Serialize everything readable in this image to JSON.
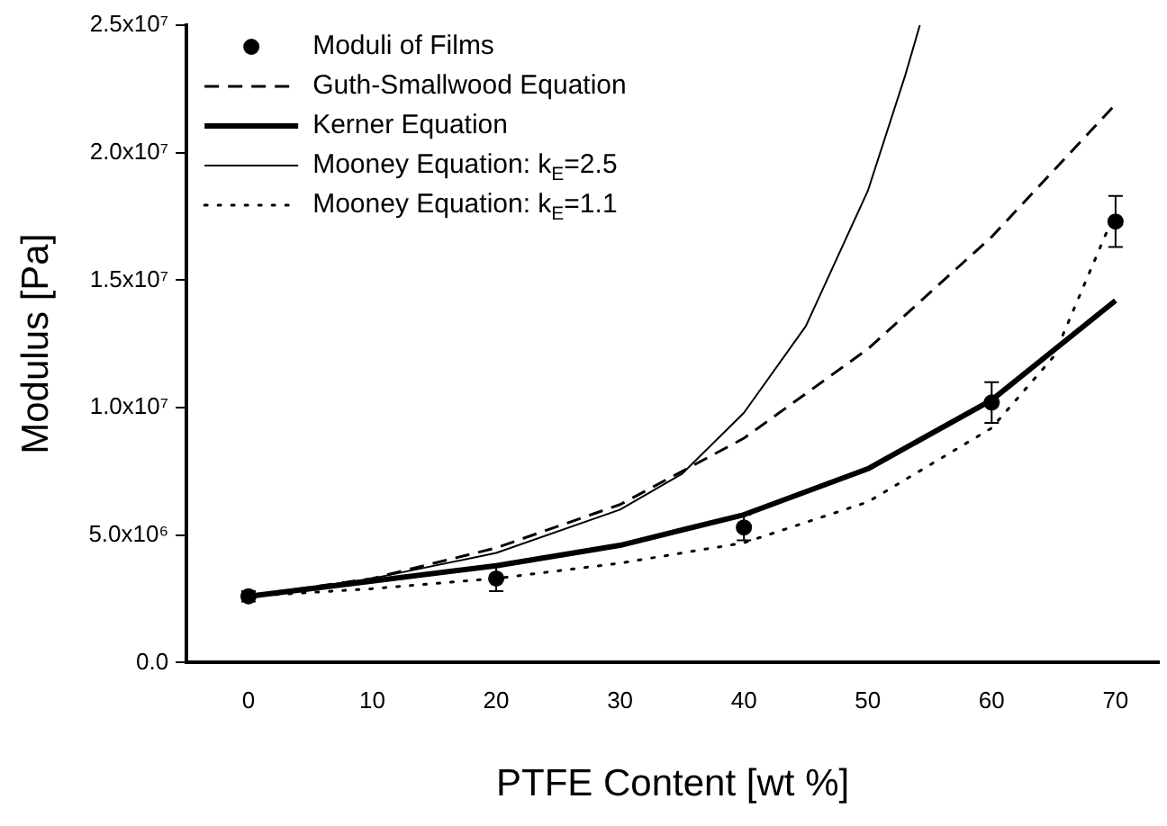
{
  "chart_data": {
    "type": "line",
    "xlabel": "PTFE Content [wt %]",
    "ylabel": "Modulus [Pa]",
    "xlim": [
      -5,
      73.5
    ],
    "xticks": [
      0,
      10,
      20,
      30,
      40,
      50,
      60,
      70
    ],
    "ylim": [
      0,
      25000000
    ],
    "yticks": [
      {
        "value": 0,
        "label": "0.0"
      },
      {
        "value": 5000000,
        "label": "5.0x10⁶"
      },
      {
        "value": 10000000,
        "label": "1.0x10⁷"
      },
      {
        "value": 15000000,
        "label": "1.5x10⁷"
      },
      {
        "value": 20000000,
        "label": "2.0x10⁷"
      },
      {
        "value": 25000000,
        "label": "2.5x10⁷"
      }
    ],
    "grid": false,
    "legend": "top left",
    "series": [
      {
        "name": "Moduli of Films",
        "type": "scatter",
        "marker": "circle",
        "color": "#000000",
        "x": [
          0,
          20,
          40,
          60,
          70
        ],
        "values": [
          2600000,
          3300000,
          5300000,
          10200000,
          17300000
        ],
        "errors": [
          200000,
          500000,
          500000,
          800000,
          1000000
        ]
      },
      {
        "name": "Guth-Smallwood Equation",
        "line_style": "dashed",
        "marker": "none",
        "color": "#000000",
        "x": [
          0,
          10,
          20,
          30,
          40,
          50,
          60,
          70
        ],
        "values": [
          2600000,
          3300000,
          4500000,
          6200000,
          8800000,
          12300000,
          16700000,
          21900000
        ]
      },
      {
        "name": "Kerner Equation",
        "line_style": "solid",
        "marker": "none",
        "color": "#000000",
        "x": [
          0,
          10,
          20,
          30,
          40,
          50,
          60,
          70
        ],
        "values": [
          2600000,
          3200000,
          3800000,
          4600000,
          5800000,
          7600000,
          10300000,
          14200000
        ]
      },
      {
        "name": "Mooney Equation: k$_{E}$=2.5",
        "line_style": "solid",
        "marker": "none",
        "color": "#000000",
        "x": [
          0,
          10,
          20,
          30,
          35,
          40,
          45,
          50,
          53,
          54.2
        ],
        "values": [
          2600000,
          3300000,
          4300000,
          6000000,
          7400000,
          9800000,
          13200000,
          18500000,
          23000000,
          25000000
        ]
      },
      {
        "name": "Mooney Equation: k$_{E}$=1.1",
        "line_style": "dotted",
        "marker": "none",
        "color": "#000000",
        "x": [
          0,
          10,
          20,
          30,
          40,
          50,
          60,
          65,
          70
        ],
        "values": [
          2600000,
          2900000,
          3300000,
          3900000,
          4700000,
          6300000,
          9200000,
          12000000,
          17700000
        ]
      }
    ]
  }
}
